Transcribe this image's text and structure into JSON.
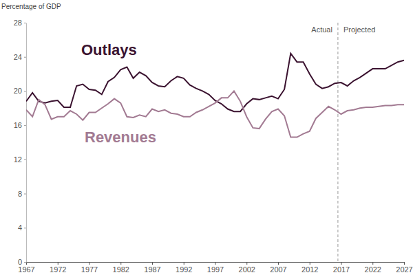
{
  "chart_data": {
    "type": "line",
    "y_label": "Percentage of GDP",
    "x": [
      1967,
      1968,
      1969,
      1970,
      1971,
      1972,
      1973,
      1974,
      1975,
      1976,
      1977,
      1978,
      1979,
      1980,
      1981,
      1982,
      1983,
      1984,
      1985,
      1986,
      1987,
      1988,
      1989,
      1990,
      1991,
      1992,
      1993,
      1994,
      1995,
      1996,
      1997,
      1998,
      1999,
      2000,
      2001,
      2002,
      2003,
      2004,
      2005,
      2006,
      2007,
      2008,
      2009,
      2010,
      2011,
      2012,
      2013,
      2014,
      2015,
      2016,
      2017,
      2018,
      2019,
      2020,
      2021,
      2022,
      2023,
      2024,
      2025,
      2026,
      2027
    ],
    "series": [
      {
        "name": "Outlays",
        "color": "#3b1330",
        "values": [
          18.8,
          19.8,
          18.8,
          18.6,
          18.8,
          18.9,
          18.1,
          18.1,
          20.6,
          20.8,
          20.2,
          20.1,
          19.6,
          21.1,
          21.6,
          22.5,
          22.8,
          21.5,
          22.2,
          21.8,
          21.0,
          20.6,
          20.5,
          21.2,
          21.7,
          21.5,
          20.7,
          20.3,
          20.0,
          19.6,
          18.9,
          18.5,
          17.9,
          17.6,
          17.6,
          18.5,
          19.1,
          19.0,
          19.2,
          19.4,
          19.1,
          20.2,
          24.4,
          23.4,
          23.4,
          22.0,
          20.8,
          20.3,
          20.5,
          20.9,
          21.0,
          20.6,
          21.2,
          21.6,
          22.1,
          22.6,
          22.6,
          22.6,
          23.0,
          23.4,
          23.6
        ]
      },
      {
        "name": "Revenues",
        "color": "#a27a92",
        "values": [
          17.8,
          17.0,
          19.0,
          18.4,
          16.7,
          17.0,
          17.0,
          17.7,
          17.3,
          16.6,
          17.5,
          17.5,
          18.0,
          18.5,
          19.1,
          18.6,
          17.0,
          16.9,
          17.2,
          17.0,
          17.9,
          17.6,
          17.8,
          17.4,
          17.3,
          17.0,
          17.0,
          17.5,
          17.8,
          18.2,
          18.6,
          19.2,
          19.2,
          20.0,
          18.8,
          17.0,
          15.7,
          15.6,
          16.7,
          17.6,
          17.9,
          17.1,
          14.6,
          14.6,
          15.0,
          15.3,
          16.8,
          17.5,
          18.2,
          17.8,
          17.3,
          17.7,
          17.8,
          18.0,
          18.1,
          18.1,
          18.2,
          18.3,
          18.3,
          18.4,
          18.4
        ]
      }
    ],
    "divider": {
      "x": 2016.5,
      "labels": [
        "Actual",
        "Projected"
      ]
    },
    "xlim": [
      1967,
      2027
    ],
    "xticks": [
      1967,
      1972,
      1977,
      1982,
      1987,
      1992,
      1997,
      2002,
      2007,
      2012,
      2017,
      2022,
      2027
    ],
    "ylim": [
      0,
      28
    ],
    "yticks": [
      0,
      4,
      8,
      12,
      16,
      20,
      24,
      28
    ],
    "grid": false,
    "line_style": "solid"
  }
}
